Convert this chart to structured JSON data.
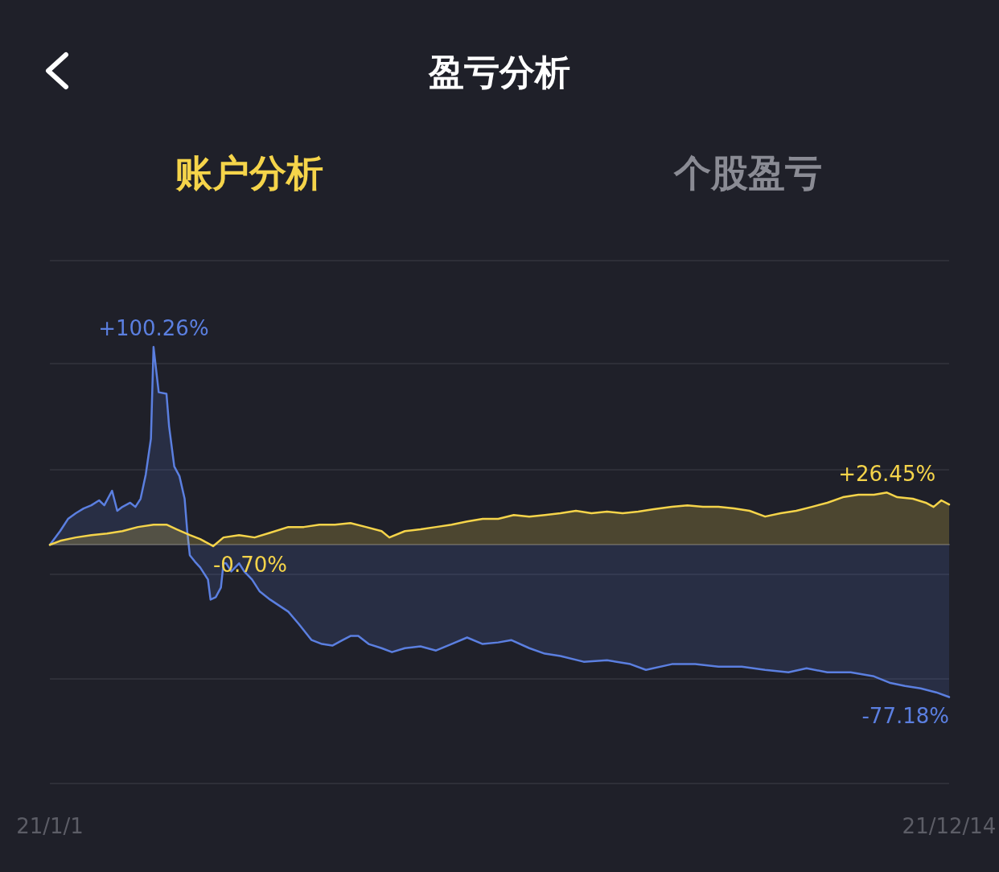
{
  "chart_data": {
    "type": "area",
    "title": "盈亏分析",
    "annotations": [
      "账户分析",
      "个股盈亏"
    ],
    "xlim": [
      "--01-01",
      "--12-14"
    ],
    "xticks": [
      {
        "value": "--01-01",
        "label": "21/1/1"
      },
      {
        "value": "--12-14",
        "label": "21/12/14"
      }
    ],
    "ylim": [
      -121,
      144
    ],
    "yticks": [
      {
        "value": -121,
        "label": null
      },
      {
        "value": -68,
        "label": null
      },
      {
        "value": -15,
        "label": null
      },
      {
        "value": 38,
        "label": null
      },
      {
        "value": 92,
        "label": null
      },
      {
        "value": 144,
        "label": null
      }
    ],
    "grid": "y",
    "marker": "none",
    "line_style": "solid",
    "series": [
      {
        "color": "#5b7fe0",
        "x": [
          "--01-01",
          "--01-05",
          "--01-08",
          "--01-11",
          "--01-14",
          "--01-17",
          "--01-20",
          "--01-22",
          "--01-25",
          "--01-27",
          "--01-29",
          "--02-01",
          "--02-03",
          "--02-05",
          "--02-07",
          "--02-09",
          "--02-10",
          "--02-12",
          "--02-15",
          "--02-16",
          "--02-18",
          "--02-20",
          "--02-22",
          "--02-23",
          "--02-24",
          "--02-26",
          "--02-28",
          "--03-03",
          "--03-04",
          "--03-06",
          "--03-08",
          "--03-09",
          "--03-10",
          "--03-12",
          "--03-15",
          "--03-17",
          "--03-20",
          "--03-23",
          "--03-27",
          "--04-03",
          "--04-07",
          "--04-12",
          "--04-16",
          "--04-20",
          "--04-24",
          "--04-27",
          "--04-30",
          "--05-04",
          "--05-09",
          "--05-13",
          "--05-18",
          "--05-24",
          "--05-30",
          "--06-05",
          "--06-11",
          "--06-17",
          "--06-23",
          "--06-28",
          "--07-05",
          "--07-11",
          "--07-17",
          "--07-26",
          "--08-04",
          "--08-13",
          "--08-19",
          "--08-29",
          "--09-07",
          "--09-16",
          "--09-25",
          "--10-04",
          "--10-13",
          "--10-20",
          "--10-28",
          "--11-06",
          "--11-15",
          "--11-21",
          "--11-27",
          "--12-03",
          "--12-09",
          "--12-14"
        ],
        "values": [
          0,
          7.0,
          13.1,
          16.0,
          18.4,
          20.0,
          22.5,
          20.0,
          27.4,
          17.2,
          19.2,
          21.3,
          19.2,
          23.3,
          35.6,
          53.8,
          100.26,
          77.3,
          76.5,
          60.1,
          39.7,
          34.8,
          23.3,
          7.0,
          -5.3,
          -8.6,
          -11.5,
          -17.6,
          -27.8,
          -26.6,
          -21.7,
          -9.4,
          -9.4,
          -13.5,
          -9.4,
          -13.5,
          -17.6,
          -23.7,
          -27.8,
          -33.9,
          -40.1,
          -48.3,
          -50.3,
          -51.1,
          -48.3,
          -46.2,
          -46.2,
          -50.3,
          -52.4,
          -54.4,
          -52.4,
          -51.5,
          -53.6,
          -50.3,
          -47.0,
          -50.3,
          -49.5,
          -48.3,
          -52.4,
          -55.2,
          -56.4,
          -59.3,
          -58.5,
          -60.5,
          -63.4,
          -60.5,
          -60.5,
          -61.8,
          -61.8,
          -63.4,
          -64.6,
          -62.6,
          -64.6,
          -64.6,
          -66.7,
          -69.9,
          -71.6,
          -72.8,
          -74.8,
          -77.18
        ],
        "value_labels": [
          null,
          null,
          null,
          null,
          null,
          null,
          null,
          null,
          null,
          null,
          null,
          null,
          null,
          null,
          null,
          null,
          "+100.26%",
          null,
          null,
          null,
          null,
          null,
          null,
          null,
          null,
          null,
          null,
          null,
          null,
          null,
          null,
          null,
          null,
          null,
          null,
          null,
          null,
          null,
          null,
          null,
          null,
          null,
          null,
          null,
          null,
          null,
          null,
          null,
          null,
          null,
          null,
          null,
          null,
          null,
          null,
          null,
          null,
          null,
          null,
          null,
          null,
          null,
          null,
          null,
          null,
          null,
          null,
          null,
          null,
          null,
          null,
          null,
          null,
          null,
          null,
          null,
          null,
          null,
          null,
          "-77.18%"
        ]
      },
      {
        "color": "#f5d44a",
        "x": [
          "--01-01",
          "--01-05",
          "--01-11",
          "--01-17",
          "--01-23",
          "--01-29",
          "--02-04",
          "--02-10",
          "--02-15",
          "--02-19",
          "--02-24",
          "--02-28",
          "--03-05",
          "--03-09",
          "--03-15",
          "--03-21",
          "--03-27",
          "--04-03",
          "--04-09",
          "--04-15",
          "--04-21",
          "--04-27",
          "--05-03",
          "--05-09",
          "--05-12",
          "--05-18",
          "--05-24",
          "--05-30",
          "--06-05",
          "--06-11",
          "--06-17",
          "--06-23",
          "--06-29",
          "--07-05",
          "--07-11",
          "--07-17",
          "--07-23",
          "--07-29",
          "--08-04",
          "--08-10",
          "--08-16",
          "--08-22",
          "--08-29",
          "--09-04",
          "--09-10",
          "--09-16",
          "--09-22",
          "--09-28",
          "--10-04",
          "--10-10",
          "--10-16",
          "--10-22",
          "--10-28",
          "--11-03",
          "--11-09",
          "--11-15",
          "--11-20",
          "--11-24",
          "--11-30",
          "--12-05",
          "--12-08",
          "--12-11",
          "--12-14"
        ],
        "values": [
          0,
          2.0,
          3.7,
          4.9,
          5.7,
          6.9,
          9.0,
          10.2,
          10.2,
          7.8,
          4.9,
          2.9,
          -0.7,
          3.7,
          4.9,
          3.7,
          6.1,
          9.0,
          9.0,
          10.2,
          10.2,
          11.0,
          9.0,
          6.9,
          3.7,
          6.9,
          7.8,
          9.0,
          10.2,
          11.8,
          13.1,
          13.1,
          15.1,
          14.3,
          15.1,
          16.0,
          17.2,
          16.0,
          16.8,
          16.0,
          16.8,
          18.0,
          19.2,
          20.0,
          19.2,
          19.2,
          18.4,
          17.2,
          14.3,
          16.0,
          17.2,
          19.2,
          21.3,
          24.1,
          25.4,
          25.4,
          26.45,
          24.1,
          23.3,
          21.3,
          19.2,
          22.5,
          20.4
        ],
        "value_labels": [
          null,
          null,
          null,
          null,
          null,
          null,
          null,
          null,
          null,
          null,
          null,
          null,
          "-0.70%",
          null,
          null,
          null,
          null,
          null,
          null,
          null,
          null,
          null,
          null,
          null,
          null,
          null,
          null,
          null,
          null,
          null,
          null,
          null,
          null,
          null,
          null,
          null,
          null,
          null,
          null,
          null,
          null,
          null,
          null,
          null,
          null,
          null,
          null,
          null,
          null,
          null,
          null,
          null,
          null,
          null,
          null,
          null,
          "+26.45%",
          null,
          null,
          null,
          null,
          null,
          null
        ]
      }
    ]
  }
}
